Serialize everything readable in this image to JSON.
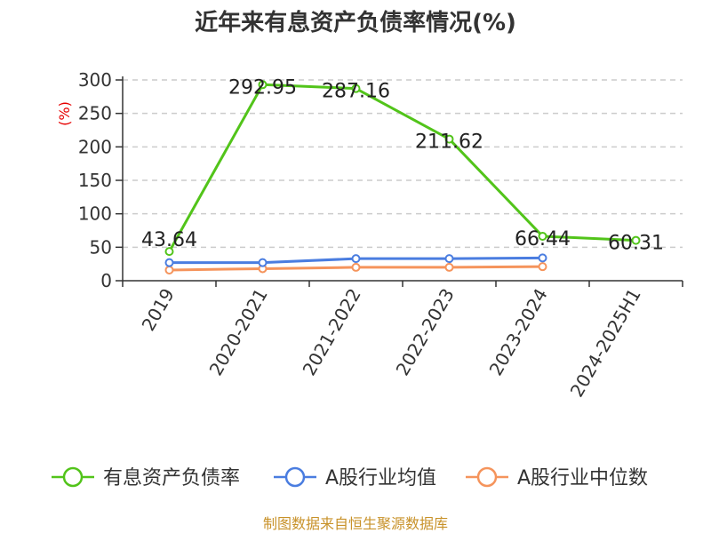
{
  "chart_data": {
    "type": "line",
    "title": "近年来有息资产负债率情况(%)",
    "ylabel": "(%)",
    "xlabel": "",
    "categories": [
      "2019",
      "2020-2021",
      "2021-2022",
      "2022-2023",
      "2023-2024",
      "2024-2025H1"
    ],
    "ylim": [
      0,
      300
    ],
    "yticks": [
      0,
      50,
      100,
      150,
      200,
      250,
      300
    ],
    "grid": true,
    "legend_position": "bottom",
    "series": [
      {
        "name": "有息资产负债率",
        "color": "#52c41a",
        "values": [
          43.64,
          292.95,
          287.16,
          211.62,
          66.44,
          60.31
        ],
        "labels": [
          "43.64",
          "292.95",
          "287.16",
          "211.62",
          "66.44",
          "60.31"
        ]
      },
      {
        "name": "A股行业均值",
        "color": "#4a7de0",
        "values": [
          27,
          27,
          33,
          33,
          34,
          null
        ],
        "labels": []
      },
      {
        "name": "A股行业中位数",
        "color": "#f5945c",
        "values": [
          16,
          18,
          20,
          20,
          21,
          null
        ],
        "labels": []
      }
    ],
    "source": "制图数据来自恒生聚源数据库"
  }
}
